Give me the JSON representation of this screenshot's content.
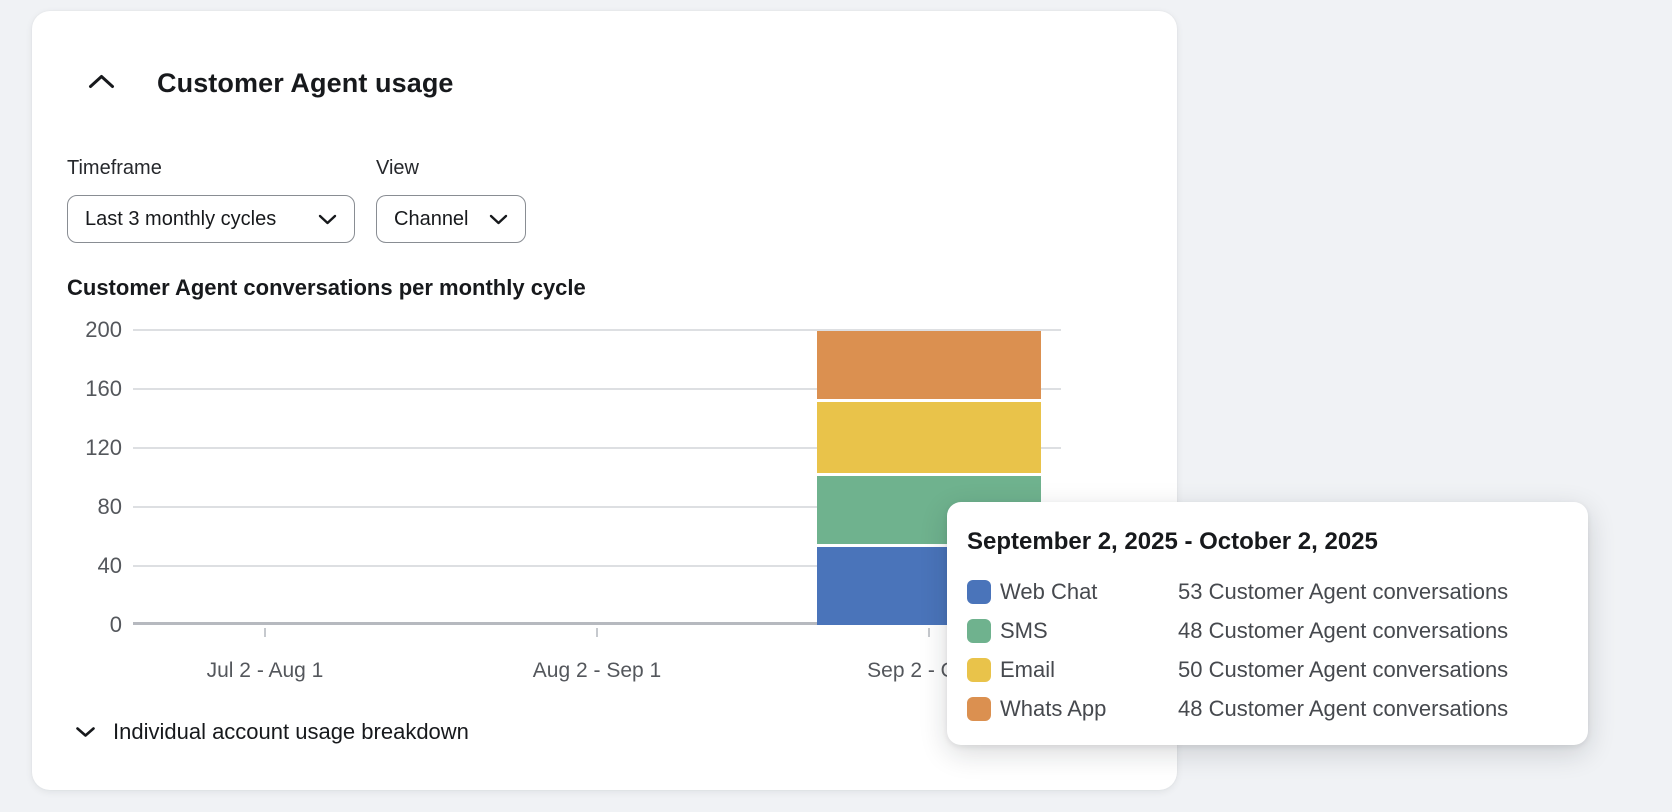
{
  "card": {
    "title": "Customer Agent usage"
  },
  "controls": {
    "timeframe": {
      "label": "Timeframe",
      "value": "Last 3 monthly cycles"
    },
    "view": {
      "label": "View",
      "value": "Channel"
    }
  },
  "chart_data": {
    "type": "bar",
    "stacked": true,
    "title": "Customer Agent conversations per monthly cycle",
    "categories": [
      "Jul 2 - Aug 1",
      "Aug 2 - Sep 1",
      "Sep 2 - Oct 2"
    ],
    "series": [
      {
        "name": "Web Chat",
        "color": "#4a74ba",
        "values": [
          0,
          0,
          53
        ]
      },
      {
        "name": "SMS",
        "color": "#6fb28e",
        "values": [
          0,
          0,
          48
        ]
      },
      {
        "name": "Email",
        "color": "#e9c34a",
        "values": [
          0,
          0,
          50
        ]
      },
      {
        "name": "Whats App",
        "color": "#db9050",
        "values": [
          0,
          0,
          48
        ]
      }
    ],
    "ylabel": "",
    "xlabel": "",
    "ylim": [
      0,
      200
    ],
    "yticks": [
      0,
      40,
      80,
      120,
      160,
      200
    ],
    "grid": true,
    "legend_position": "tooltip"
  },
  "tooltip": {
    "title": "September 2, 2025 - October 2, 2025",
    "rows": [
      {
        "label": "Web Chat",
        "value": 53,
        "text": "53 Customer Agent conversations",
        "color": "#4a74ba"
      },
      {
        "label": "SMS",
        "value": 48,
        "text": "48 Customer Agent conversations",
        "color": "#6fb28e"
      },
      {
        "label": "Email",
        "value": 50,
        "text": "50 Customer Agent conversations",
        "color": "#e9c34a"
      },
      {
        "label": "Whats App",
        "value": 48,
        "text": "48 Customer Agent conversations",
        "color": "#db9050"
      }
    ]
  },
  "breakdown": {
    "label": "Individual account usage breakdown"
  }
}
